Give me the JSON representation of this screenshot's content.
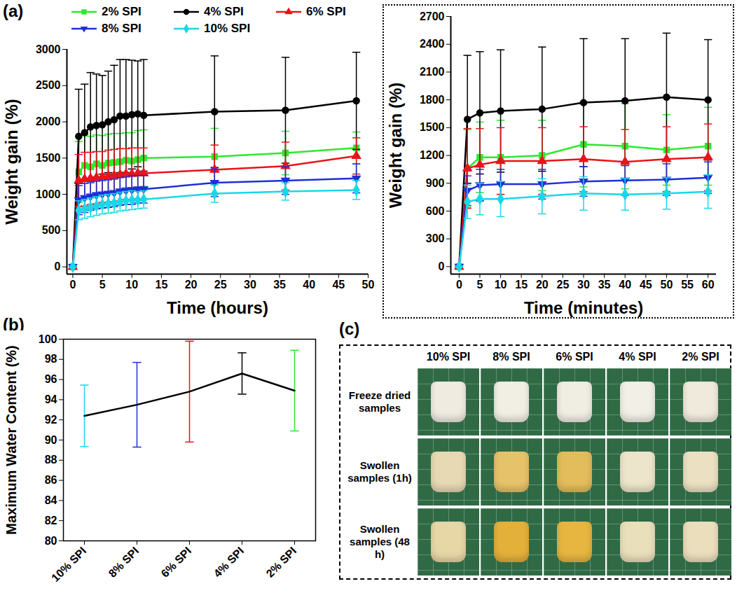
{
  "chart_data": [
    {
      "type": "line",
      "panel_label": "(a)",
      "xlabel": "Time (hours)",
      "ylabel": "Weight gain (%)",
      "legend": "top",
      "x": [
        0,
        1,
        2,
        3,
        4,
        5,
        6,
        7,
        8,
        9,
        10,
        11,
        12,
        24,
        36,
        48
      ],
      "xlim": [
        -1,
        50
      ],
      "xticks": [
        0,
        5,
        10,
        15,
        20,
        25,
        30,
        35,
        40,
        45,
        50
      ],
      "ylim": [
        -100,
        3000
      ],
      "yticks": [
        0,
        500,
        1000,
        1500,
        2000,
        2500,
        3000
      ],
      "series": [
        {
          "name": "2% SPI",
          "color": "#2ee82e",
          "marker": "square",
          "values": [
            0,
            1310,
            1400,
            1380,
            1420,
            1400,
            1430,
            1440,
            1450,
            1470,
            1460,
            1480,
            1500,
            1520,
            1570,
            1640
          ],
          "errors": [
            0,
            420,
            420,
            420,
            400,
            410,
            400,
            400,
            390,
            380,
            390,
            400,
            390,
            390,
            300,
            220
          ]
        },
        {
          "name": "4% SPI",
          "color": "#000000",
          "marker": "circle",
          "values": [
            0,
            1800,
            1850,
            1930,
            1950,
            1960,
            2000,
            2030,
            2080,
            2080,
            2100,
            2110,
            2090,
            2140,
            2160,
            2290
          ],
          "errors": [
            0,
            650,
            670,
            750,
            710,
            680,
            700,
            750,
            780,
            780,
            750,
            730,
            770,
            770,
            730,
            670
          ]
        },
        {
          "name": "6% SPI",
          "color": "#e8141a",
          "marker": "triangle",
          "values": [
            0,
            1190,
            1210,
            1220,
            1230,
            1240,
            1250,
            1260,
            1270,
            1280,
            1280,
            1290,
            1290,
            1340,
            1390,
            1530
          ],
          "errors": [
            0,
            360,
            370,
            360,
            360,
            350,
            360,
            360,
            360,
            350,
            360,
            350,
            350,
            340,
            330,
            250
          ]
        },
        {
          "name": "8% SPI",
          "color": "#1f2fd6",
          "marker": "triangle-down",
          "values": [
            0,
            920,
            950,
            970,
            990,
            1000,
            1010,
            1020,
            1040,
            1050,
            1060,
            1070,
            1070,
            1160,
            1190,
            1220
          ],
          "errors": [
            0,
            200,
            200,
            190,
            190,
            190,
            190,
            190,
            190,
            190,
            200,
            190,
            190,
            190,
            190,
            200
          ]
        },
        {
          "name": "10% SPI",
          "color": "#18d8e8",
          "marker": "diamond",
          "values": [
            0,
            780,
            800,
            820,
            840,
            860,
            870,
            880,
            900,
            910,
            920,
            920,
            930,
            1010,
            1040,
            1060
          ],
          "errors": [
            0,
            130,
            130,
            130,
            130,
            130,
            130,
            130,
            130,
            130,
            130,
            120,
            120,
            120,
            120,
            130
          ]
        }
      ]
    },
    {
      "type": "line",
      "xlabel": "Time (minutes)",
      "ylabel": "Weight gain (%)",
      "x": [
        0,
        2,
        5,
        10,
        20,
        30,
        40,
        50,
        60
      ],
      "xlim": [
        -2,
        62
      ],
      "xticks": [
        0,
        5,
        10,
        15,
        20,
        25,
        30,
        35,
        40,
        45,
        50,
        55,
        60
      ],
      "ylim": [
        -80,
        2700
      ],
      "yticks": [
        0,
        300,
        600,
        900,
        1200,
        1500,
        1800,
        2100,
        2400,
        2700
      ],
      "series": [
        {
          "name": "2% SPI",
          "color": "#2ee82e",
          "marker": "square",
          "values": [
            0,
            1060,
            1180,
            1180,
            1200,
            1320,
            1300,
            1260,
            1300
          ],
          "errors": [
            0,
            420,
            380,
            400,
            380,
            460,
            460,
            380,
            420
          ]
        },
        {
          "name": "4% SPI",
          "color": "#000000",
          "marker": "circle",
          "values": [
            0,
            1590,
            1660,
            1680,
            1700,
            1770,
            1790,
            1830,
            1800
          ],
          "errors": [
            0,
            690,
            660,
            660,
            670,
            690,
            670,
            690,
            650
          ]
        },
        {
          "name": "6% SPI",
          "color": "#e8141a",
          "marker": "triangle",
          "values": [
            0,
            1060,
            1100,
            1140,
            1140,
            1160,
            1130,
            1160,
            1180
          ],
          "errors": [
            0,
            430,
            390,
            360,
            360,
            350,
            350,
            350,
            360
          ]
        },
        {
          "name": "8% SPI",
          "color": "#1f2fd6",
          "marker": "triangle-down",
          "values": [
            0,
            820,
            880,
            890,
            890,
            920,
            930,
            940,
            960
          ],
          "errors": [
            0,
            160,
            170,
            160,
            160,
            160,
            160,
            170,
            170
          ]
        },
        {
          "name": "10% SPI",
          "color": "#18d8e8",
          "marker": "diamond",
          "values": [
            0,
            700,
            730,
            730,
            760,
            790,
            780,
            790,
            810
          ],
          "errors": [
            0,
            180,
            170,
            190,
            190,
            180,
            170,
            170,
            180
          ]
        }
      ]
    },
    {
      "type": "line",
      "panel_label": "(b)",
      "ylabel": "Maximum Water Content (%)",
      "categories": [
        "10% SPI",
        "8% SPI",
        "6% SPI",
        "4% SPI",
        "2% SPI"
      ],
      "values": [
        92.4,
        93.5,
        94.8,
        96.6,
        94.9
      ],
      "errors": [
        3.05,
        4.2,
        5.0,
        2.05,
        4.0
      ],
      "color": "#000000",
      "colors": [
        "#18d8e8",
        "#1f2fd6",
        "#e8141a",
        "#000000",
        "#2ee82e"
      ],
      "ylim": [
        80,
        100
      ],
      "yticks": [
        80,
        82,
        84,
        86,
        88,
        90,
        92,
        94,
        96,
        98,
        100
      ]
    }
  ],
  "photo_panel": {
    "panel_label": "(c)",
    "columns": [
      "10% SPI",
      "8% SPI",
      "6% SPI",
      "4% SPI",
      "2% SPI"
    ],
    "rows": [
      {
        "label": "Freeze dried samples",
        "colors": [
          "#efebe0",
          "#f1eee4",
          "#f0ede3",
          "#f2efe6",
          "#efeadc"
        ]
      },
      {
        "label": "Swollen samples (1h)",
        "colors": [
          "#e6d9b4",
          "#e6c36a",
          "#e3bd5c",
          "#ede5cb",
          "#ebe0c2"
        ]
      },
      {
        "label": "Swollen samples (48 h)",
        "colors": [
          "#e7d6a6",
          "#e3b03a",
          "#e6b640",
          "#eadfbb",
          "#ebdebd"
        ]
      }
    ]
  }
}
